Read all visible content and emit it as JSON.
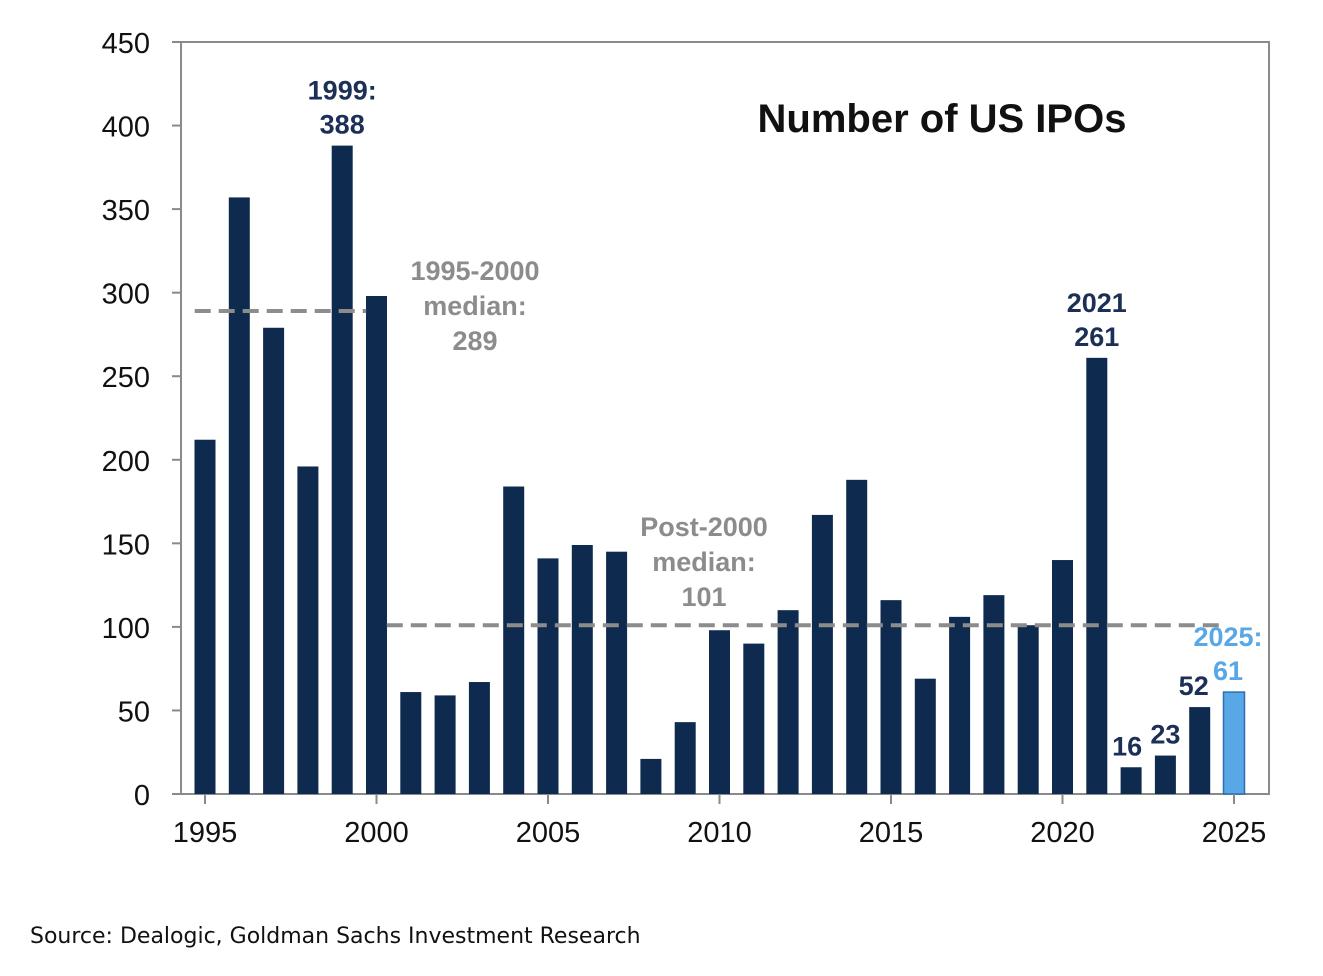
{
  "chart_data": {
    "type": "bar",
    "title": "Number of US IPOs",
    "xlabel": "",
    "ylabel": "",
    "ylim": [
      0,
      450
    ],
    "yticks": [
      0,
      50,
      100,
      150,
      200,
      250,
      300,
      350,
      400,
      450
    ],
    "xtick_labels": [
      "1995",
      "2000",
      "2005",
      "2010",
      "2015",
      "2020",
      "2025"
    ],
    "categories": [
      "1995",
      "1996",
      "1997",
      "1998",
      "1999",
      "2000",
      "2001",
      "2002",
      "2003",
      "2004",
      "2005",
      "2006",
      "2007",
      "2008",
      "2009",
      "2010",
      "2011",
      "2012",
      "2013",
      "2014",
      "2015",
      "2016",
      "2017",
      "2018",
      "2019",
      "2020",
      "2021",
      "2022",
      "2023",
      "2024",
      "2025"
    ],
    "values": [
      212,
      357,
      279,
      196,
      388,
      298,
      61,
      59,
      67,
      184,
      141,
      149,
      145,
      21,
      43,
      98,
      90,
      110,
      167,
      188,
      116,
      69,
      106,
      119,
      101,
      140,
      261,
      16,
      23,
      52,
      61
    ],
    "colors": {
      "bar": "#0e2a4e",
      "highlight": "#58a7e6",
      "median": "#8c8c8c",
      "annotation": "#1b2f57"
    },
    "medians": [
      {
        "label": "1995-2000 median: 289",
        "value": 289,
        "from": "1995",
        "to": "2000",
        "text_lines": [
          "1995-2000",
          "median:",
          "289"
        ]
      },
      {
        "label": "Post-2000 median: 101",
        "value": 101,
        "from": "2001",
        "to": "2025",
        "text_lines": [
          "Post-2000",
          "median:",
          "101"
        ]
      }
    ],
    "annotations": [
      {
        "category": "1999",
        "lines": [
          "1999:",
          "388"
        ]
      },
      {
        "category": "2021",
        "lines": [
          "2021",
          "261"
        ]
      },
      {
        "category": "2022",
        "lines": [
          "16"
        ]
      },
      {
        "category": "2023",
        "lines": [
          "23"
        ]
      },
      {
        "category": "2024",
        "lines": [
          "52"
        ]
      },
      {
        "category": "2025",
        "lines": [
          "2025:",
          "61"
        ],
        "highlight": true
      }
    ]
  },
  "source": "Source: Dealogic, Goldman Sachs Investment Research"
}
